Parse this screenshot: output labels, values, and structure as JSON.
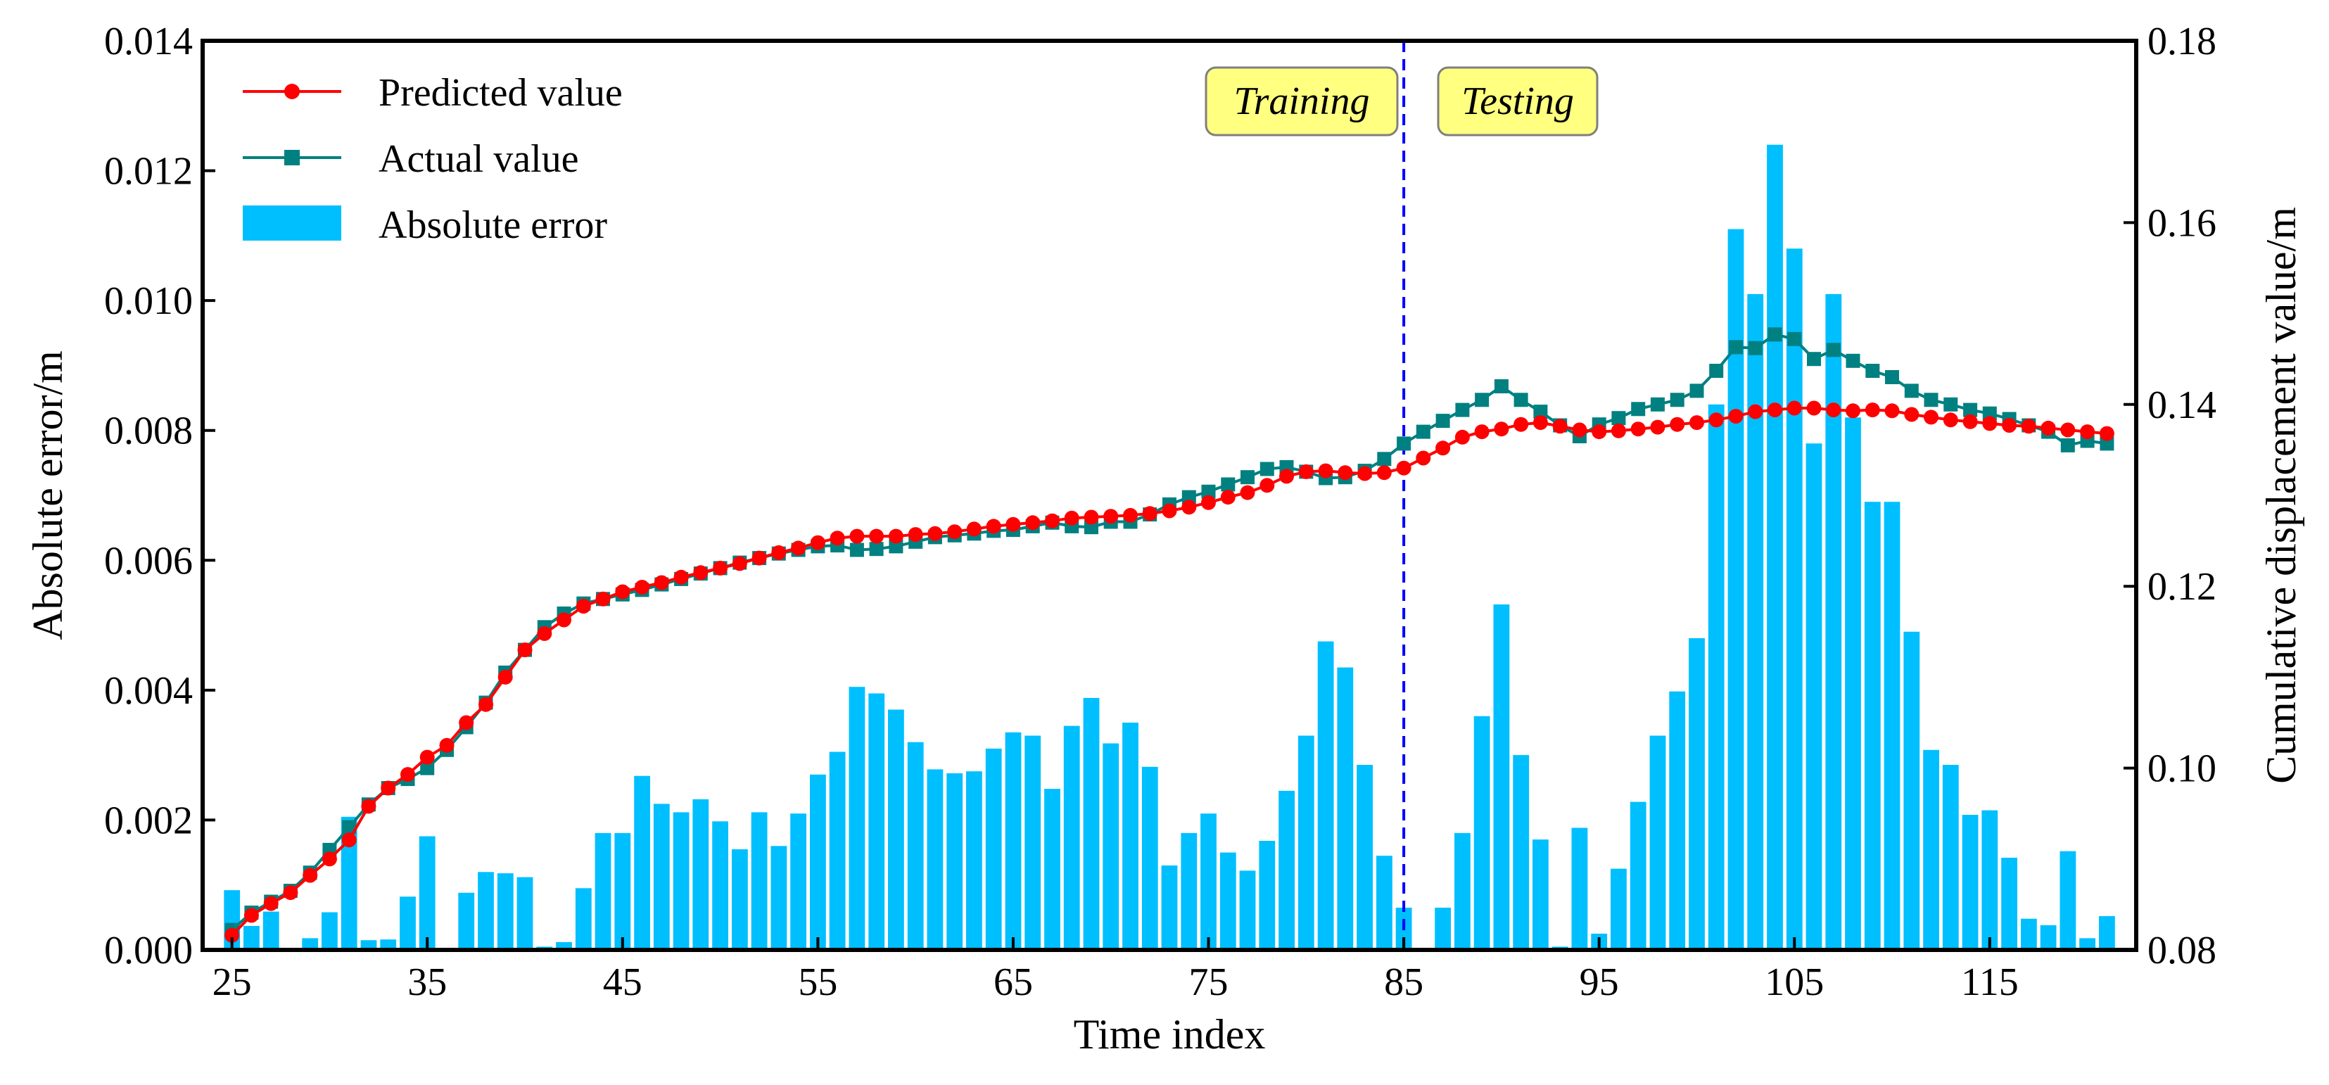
{
  "chart_data": {
    "type": "bar+line",
    "title": "",
    "xlabel": "Time index",
    "ylabel_left": "Absolute error/m",
    "ylabel_right": "Cumulative displacement value/m",
    "xlim": [
      23.5,
      122.5
    ],
    "ylim_left": [
      0,
      0.014
    ],
    "ylim_right": [
      0.08,
      0.18
    ],
    "x_ticks": [
      25,
      35,
      45,
      55,
      65,
      75,
      85,
      95,
      105,
      115
    ],
    "y_ticks_left": [
      "0.000",
      "0.002",
      "0.004",
      "0.006",
      "0.008",
      "0.010",
      "0.012",
      "0.014"
    ],
    "y_ticks_right": [
      "0.08",
      "0.10",
      "0.12",
      "0.14",
      "0.16",
      "0.18"
    ],
    "grid": false,
    "legend_position": "top-left",
    "split_index": 85,
    "annotations": {
      "training": "Training",
      "testing": "Testing"
    },
    "x": [
      25,
      26,
      27,
      28,
      29,
      30,
      31,
      32,
      33,
      34,
      35,
      36,
      37,
      38,
      39,
      40,
      41,
      42,
      43,
      44,
      45,
      46,
      47,
      48,
      49,
      50,
      51,
      52,
      53,
      54,
      55,
      56,
      57,
      58,
      59,
      60,
      61,
      62,
      63,
      64,
      65,
      66,
      67,
      68,
      69,
      70,
      71,
      72,
      73,
      74,
      75,
      76,
      77,
      78,
      79,
      80,
      81,
      82,
      83,
      84,
      85,
      86,
      87,
      88,
      89,
      90,
      91,
      92,
      93,
      94,
      95,
      96,
      97,
      98,
      99,
      100,
      101,
      102,
      103,
      104,
      105,
      106,
      107,
      108,
      109,
      110,
      111,
      112,
      113,
      114,
      115,
      116,
      117,
      118,
      119,
      120,
      121
    ],
    "series": [
      {
        "name": "Predicted value",
        "kind": "line",
        "axis": "right",
        "color": "#ff0000",
        "marker": "circle",
        "values": [
          0.0816,
          0.0838,
          0.0851,
          0.0863,
          0.0882,
          0.09,
          0.0921,
          0.0958,
          0.0978,
          0.0993,
          0.1012,
          0.1025,
          0.105,
          0.107,
          0.11,
          0.113,
          0.1148,
          0.1163,
          0.1178,
          0.1186,
          0.1194,
          0.1199,
          0.1204,
          0.121,
          0.1215,
          0.122,
          0.1225,
          0.1231,
          0.1237,
          0.1242,
          0.1248,
          0.1253,
          0.1255,
          0.1255,
          0.1255,
          0.1257,
          0.1258,
          0.126,
          0.1263,
          0.1266,
          0.1268,
          0.127,
          0.1272,
          0.1275,
          0.1276,
          0.1277,
          0.1278,
          0.128,
          0.1283,
          0.1287,
          0.1292,
          0.1298,
          0.1303,
          0.1311,
          0.1321,
          0.1326,
          0.1327,
          0.1325,
          0.1324,
          0.1325,
          0.133,
          0.1341,
          0.1352,
          0.1364,
          0.137,
          0.1373,
          0.1378,
          0.138,
          0.1376,
          0.1372,
          0.137,
          0.1371,
          0.1373,
          0.1375,
          0.1378,
          0.138,
          0.1383,
          0.1387,
          0.1392,
          0.1394,
          0.1396,
          0.1396,
          0.1394,
          0.1393,
          0.1394,
          0.1393,
          0.1389,
          0.1386,
          0.1383,
          0.1381,
          0.1379,
          0.1377,
          0.1376,
          0.1374,
          0.1372,
          0.137,
          0.1368
        ]
      },
      {
        "name": "Actual value",
        "kind": "line",
        "axis": "right",
        "color": "#008080",
        "marker": "square",
        "values": [
          0.0822,
          0.0841,
          0.0853,
          0.0865,
          0.0885,
          0.091,
          0.0935,
          0.096,
          0.0978,
          0.0988,
          0.1,
          0.102,
          0.1045,
          0.1072,
          0.1105,
          0.113,
          0.1155,
          0.117,
          0.1181,
          0.1186,
          0.1191,
          0.1196,
          0.1202,
          0.1208,
          0.1214,
          0.122,
          0.1226,
          0.1231,
          0.1236,
          0.124,
          0.1244,
          0.1245,
          0.124,
          0.1241,
          0.1244,
          0.1249,
          0.1254,
          0.1256,
          0.1258,
          0.1261,
          0.1262,
          0.1266,
          0.127,
          0.1266,
          0.1265,
          0.1271,
          0.1271,
          0.1279,
          0.129,
          0.1298,
          0.1304,
          0.1312,
          0.132,
          0.1329,
          0.1331,
          0.1326,
          0.1319,
          0.132,
          0.1327,
          0.134,
          0.1357,
          0.137,
          0.1382,
          0.1394,
          0.1405,
          0.142,
          0.1405,
          0.1392,
          0.1377,
          0.1365,
          0.1378,
          0.1385,
          0.1395,
          0.14,
          0.1405,
          0.1415,
          0.1437,
          0.1463,
          0.1462,
          0.1477,
          0.1472,
          0.145,
          0.146,
          0.1448,
          0.1437,
          0.143,
          0.1415,
          0.1405,
          0.14,
          0.1394,
          0.139,
          0.1384,
          0.1377,
          0.137,
          0.1355,
          0.136,
          0.1357
        ]
      },
      {
        "name": "Absolute error",
        "kind": "bar",
        "axis": "left",
        "color": "#00bfff",
        "values": [
          0.00092,
          0.00037,
          0.00059,
          0.0,
          0.00018,
          0.00058,
          0.00205,
          0.00015,
          0.00016,
          0.00082,
          0.00175,
          0.0,
          0.00088,
          0.0012,
          0.00118,
          0.00112,
          5e-05,
          0.00012,
          0.00095,
          0.0018,
          0.0018,
          0.00268,
          0.00225,
          0.00212,
          0.00232,
          0.00198,
          0.00155,
          0.00212,
          0.0016,
          0.0021,
          0.0027,
          0.00305,
          0.00405,
          0.00395,
          0.0037,
          0.0032,
          0.00278,
          0.00272,
          0.00275,
          0.0031,
          0.00335,
          0.0033,
          0.00248,
          0.00345,
          0.00388,
          0.00318,
          0.0035,
          0.00282,
          0.0013,
          0.0018,
          0.0021,
          0.0015,
          0.00122,
          0.00168,
          0.00245,
          0.0033,
          0.00475,
          0.00435,
          0.00285,
          0.00145,
          0.00065,
          0.0,
          0.00065,
          0.0018,
          0.0036,
          0.00532,
          0.003,
          0.0017,
          5e-05,
          0.00188,
          0.00025,
          0.00125,
          0.00228,
          0.0033,
          0.00398,
          0.0048,
          0.0084,
          0.0111,
          0.0101,
          0.0124,
          0.0108,
          0.0078,
          0.0101,
          0.0082,
          0.0069,
          0.0069,
          0.0049,
          0.00308,
          0.00285,
          0.00208,
          0.00215,
          0.00142,
          0.00048,
          0.00038,
          0.00152,
          0.00018,
          0.00052
        ]
      }
    ]
  }
}
